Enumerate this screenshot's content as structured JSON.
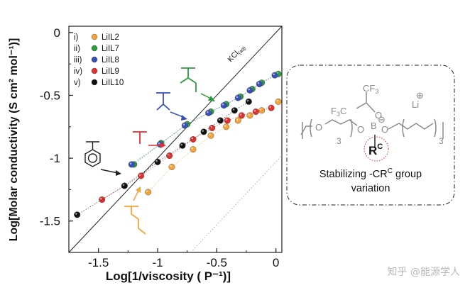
{
  "chart_data": {
    "type": "scatter",
    "title": "",
    "xlabel": "Log[1/viscosity ( P⁻¹)]",
    "ylabel": "Log[Molar conductivity (S cm² mol⁻¹)]",
    "xlim": [
      -1.75,
      0.05
    ],
    "ylim": [
      -1.75,
      0.05
    ],
    "xticks": [
      -1.5,
      -1,
      -0.5,
      0
    ],
    "xtick_labels": [
      "-1.5",
      "-1",
      "-0.5",
      "0"
    ],
    "yticks": [
      0,
      -0.5,
      -1,
      -1.5
    ],
    "ytick_labels": [
      "0",
      "-0.5",
      "-1",
      "-1.5"
    ],
    "grid": false,
    "legend_position": "top-left",
    "reference_line": {
      "label": "KCl",
      "subscript": "(aq)",
      "x": [
        -1.75,
        0.05
      ],
      "y": [
        -1.75,
        0.05
      ]
    },
    "series": [
      {
        "marker": "i)",
        "name": "LiIL2",
        "color": "#f2a33a",
        "x": [
          -1.08,
          -0.88,
          -0.7,
          -0.55,
          -0.42,
          -0.32,
          -0.22,
          -0.12,
          0.02
        ],
        "y": [
          -1.27,
          -1.07,
          -0.93,
          -0.82,
          -0.75,
          -0.7,
          -0.66,
          -0.62,
          -0.55
        ]
      },
      {
        "marker": "ii)",
        "name": "LiIL7",
        "color": "#2e9a3e",
        "x": [
          -1.2,
          -0.97,
          -0.75,
          -0.55,
          -0.42,
          -0.3,
          -0.2,
          -0.12,
          0.02
        ],
        "y": [
          -1.05,
          -0.88,
          -0.73,
          -0.63,
          -0.57,
          -0.51,
          -0.45,
          -0.4,
          -0.33
        ]
      },
      {
        "marker": "iii)",
        "name": "LiIL8",
        "color": "#3a4fb5",
        "x": [
          -1.22,
          -0.98,
          -0.77,
          -0.57,
          -0.44,
          -0.32,
          -0.22,
          -0.14,
          -0.01
        ],
        "y": [
          -1.05,
          -0.89,
          -0.74,
          -0.64,
          -0.58,
          -0.52,
          -0.46,
          -0.41,
          -0.34
        ]
      },
      {
        "marker": "iv)",
        "name": "LiIL9",
        "color": "#e03030",
        "x": [
          -1.47,
          -1.14,
          -0.9,
          -0.7,
          -0.54,
          -0.41,
          -0.29,
          -0.17,
          -0.04
        ],
        "y": [
          -1.33,
          -1.14,
          -0.98,
          -0.85,
          -0.76,
          -0.7,
          -0.66,
          -0.63,
          -0.6
        ]
      },
      {
        "marker": "v)",
        "name": "LiIL10",
        "color": "#111111",
        "x": [
          -1.68,
          -1.28,
          -1.0,
          -0.79,
          -0.61,
          -0.47,
          -0.35,
          -0.23
        ],
        "y": [
          -1.45,
          -1.22,
          -1.03,
          -0.9,
          -0.79,
          -0.7,
          -0.62,
          -0.55
        ]
      }
    ],
    "fragment_colors": {
      "LiIL10": "#222222",
      "LiIL9": "#e03030",
      "LiIL8": "#3a4fb5",
      "LiIL7": "#2e9a3e",
      "LiIL2": "#f2a33a"
    }
  },
  "panel": {
    "caption_line1": "Stabilizing -CR",
    "caption_sup": "C",
    "caption_line1_end": " group",
    "caption_line2": "variation",
    "structure_labels": {
      "cf3_top": "CF",
      "cf3_top_sub": "3",
      "f3c_left": "F",
      "f3c_left_sub": "3",
      "f3c_left_end": "C",
      "oxygen": "O",
      "boron": "B",
      "minus": "⊖",
      "lithium": "Li",
      "plus": "⊕",
      "rc": "R",
      "rc_sup": "C",
      "repeat": "3"
    }
  },
  "watermark": "知乎 @能源学人"
}
